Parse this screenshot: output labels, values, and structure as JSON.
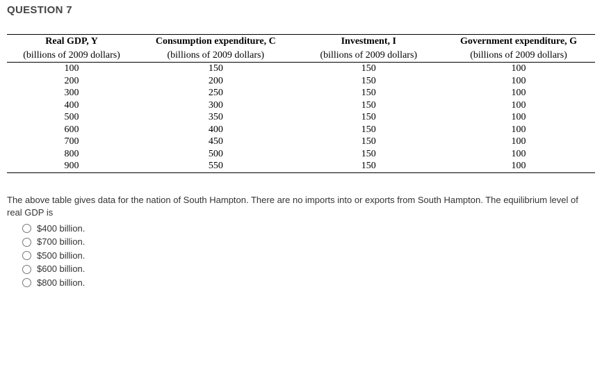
{
  "question_title": "QUESTION 7",
  "table": {
    "columns": [
      {
        "header": "Real GDP, Y",
        "sub": "(billions of 2009 dollars)"
      },
      {
        "header": "Consumption expenditure, C",
        "sub": "(billions of 2009 dollars)"
      },
      {
        "header": "Investment, I",
        "sub": "(billions of 2009 dollars)"
      },
      {
        "header": "Government expenditure, G",
        "sub": "(billions of 2009 dollars)"
      }
    ],
    "rows": [
      [
        "100",
        "150",
        "150",
        "100"
      ],
      [
        "200",
        "200",
        "150",
        "100"
      ],
      [
        "300",
        "250",
        "150",
        "100"
      ],
      [
        "400",
        "300",
        "150",
        "100"
      ],
      [
        "500",
        "350",
        "150",
        "100"
      ],
      [
        "600",
        "400",
        "150",
        "100"
      ],
      [
        "700",
        "450",
        "150",
        "100"
      ],
      [
        "800",
        "500",
        "150",
        "100"
      ],
      [
        "900",
        "550",
        "150",
        "100"
      ]
    ],
    "col_widths_pct": [
      22,
      27,
      25,
      26
    ],
    "border_color": "#000000",
    "header_fontweight": "bold",
    "font_family": "Georgia, 'Times New Roman', serif",
    "font_size_pt": 11
  },
  "prompt": "The above table gives data for the nation of South Hampton. There are no imports into or exports from South Hampton. The equilibrium level of real GDP is",
  "options": [
    "$400 billion.",
    "$700 billion.",
    "$500 billion.",
    "$600 billion.",
    "$800 billion."
  ],
  "colors": {
    "background": "#ffffff",
    "text_body": "#333333",
    "text_title": "#454545",
    "table_text": "#000000",
    "border": "#000000"
  }
}
